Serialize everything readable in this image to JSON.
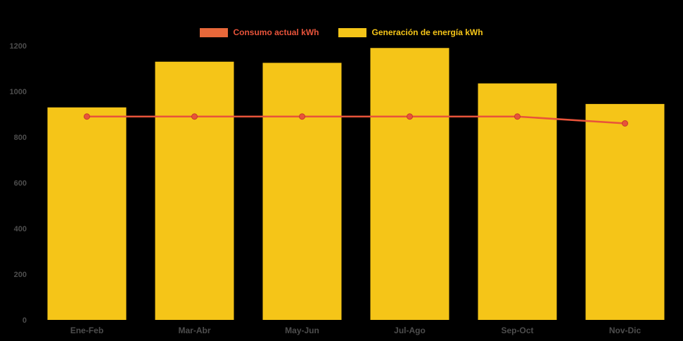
{
  "legend": {
    "items": [
      {
        "label": "Consumo actual kWh",
        "color": "#e8533a",
        "swatch_color": "#e8683a",
        "type": "line"
      },
      {
        "label": "Generación de energía kWh",
        "color": "#f5c518",
        "swatch_color": "#f5c518",
        "type": "bar"
      }
    ]
  },
  "chart_data": {
    "type": "bar",
    "subtype": "bar-with-line-overlay",
    "categories": [
      "Ene-Feb",
      "Mar-Abr",
      "May-Jun",
      "Jul-Ago",
      "Sep-Oct",
      "Nov-Dic"
    ],
    "series": [
      {
        "name": "Generación de energía kWh",
        "type": "bar",
        "color": "#f5c518",
        "values": [
          930,
          1130,
          1125,
          1190,
          1035,
          945
        ]
      },
      {
        "name": "Consumo actual kWh",
        "type": "line",
        "color": "#e8533a",
        "marker_stroke": "#c43a2b",
        "values": [
          890,
          890,
          890,
          890,
          890,
          860
        ]
      }
    ],
    "title": "",
    "xlabel": "",
    "ylabel": "",
    "ylim": [
      0,
      1200
    ],
    "yticks": [
      0,
      200,
      400,
      600,
      800,
      1000,
      1200
    ],
    "grid": false,
    "legend_position": "top-center",
    "background": "#000000",
    "axis_label_color": "#4d4d4d"
  }
}
